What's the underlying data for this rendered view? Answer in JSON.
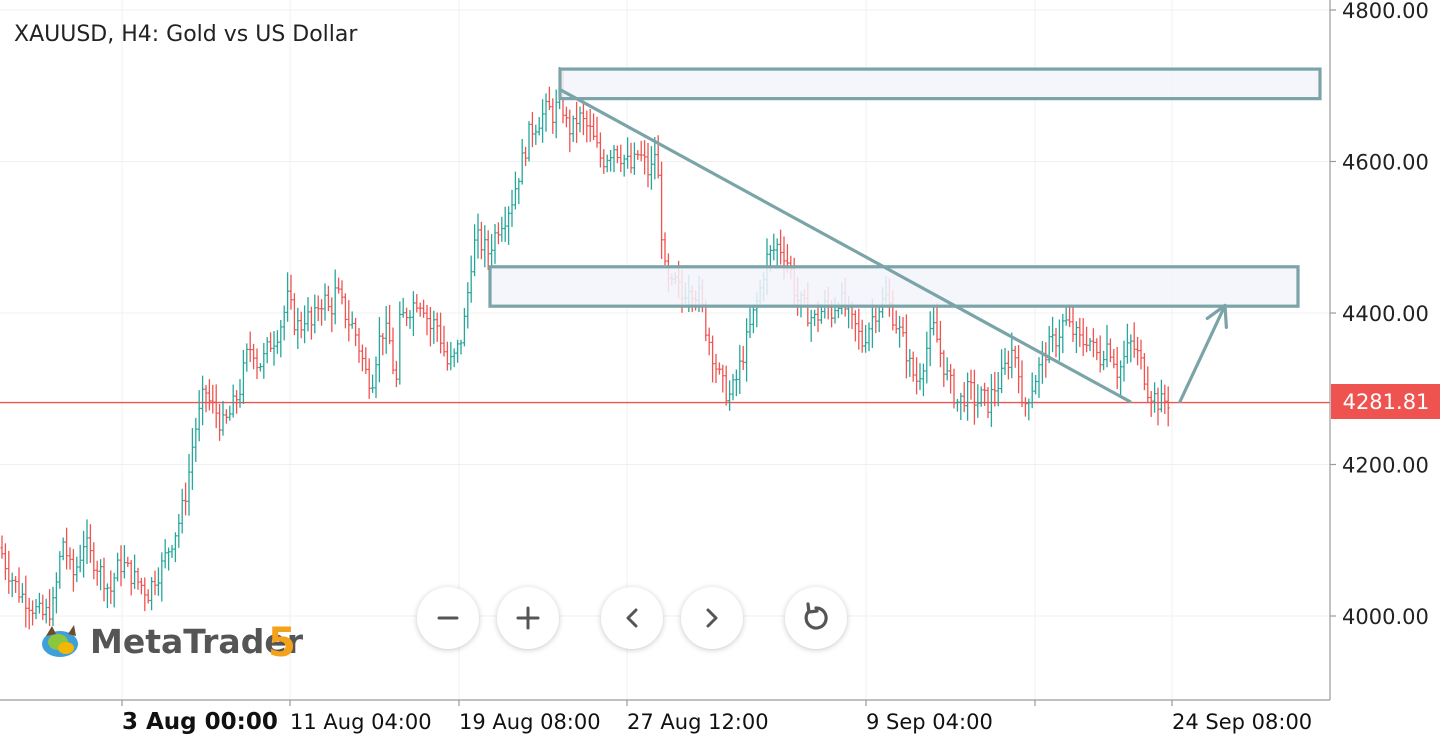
{
  "chart_data": {
    "type": "candlestick",
    "title": "XAUUSD, H4: Gold vs US Dollar",
    "symbol": "XAUUSD",
    "timeframe": "H4",
    "description": "Gold vs US Dollar",
    "y_ticks": [
      "4800.00",
      "4600.00",
      "4400.00",
      "4200.00",
      "4000.00"
    ],
    "ylim": [
      3890,
      4810
    ],
    "current_price": 4281.81,
    "current_price_label": "4281.81",
    "x_tick_labels": [
      {
        "label": "3 Aug 00:00",
        "bold": true
      },
      {
        "label": "11 Aug 04:00",
        "bold": false
      },
      {
        "label": "19 Aug 08:00",
        "bold": false
      },
      {
        "label": "27 Aug 12:00",
        "bold": false
      },
      {
        "label": "9 Sep 04:00",
        "bold": false
      },
      {
        "label": "24 Sep 08:00",
        "bold": false
      }
    ],
    "price_path": [
      [
        0,
        4090
      ],
      [
        8,
        4060
      ],
      [
        14,
        4045
      ],
      [
        20,
        4030
      ],
      [
        28,
        4020
      ],
      [
        34,
        4010
      ],
      [
        42,
        4000
      ],
      [
        48,
        4005
      ],
      [
        54,
        4015
      ],
      [
        58,
        4060
      ],
      [
        63,
        4100
      ],
      [
        67,
        4080
      ],
      [
        72,
        4050
      ],
      [
        78,
        4070
      ],
      [
        84,
        4100
      ],
      [
        90,
        4080
      ],
      [
        96,
        4070
      ],
      [
        104,
        4050
      ],
      [
        110,
        4030
      ],
      [
        116,
        4060
      ],
      [
        122,
        4070
      ],
      [
        128,
        4060
      ],
      [
        134,
        4050
      ],
      [
        142,
        4040
      ],
      [
        148,
        4030
      ],
      [
        154,
        4050
      ],
      [
        160,
        4060
      ],
      [
        166,
        4080
      ],
      [
        172,
        4100
      ],
      [
        178,
        4120
      ],
      [
        184,
        4150
      ],
      [
        188,
        4180
      ],
      [
        194,
        4240
      ],
      [
        200,
        4270
      ],
      [
        205,
        4300
      ],
      [
        210,
        4280
      ],
      [
        216,
        4270
      ],
      [
        222,
        4250
      ],
      [
        228,
        4260
      ],
      [
        234,
        4280
      ],
      [
        240,
        4300
      ],
      [
        246,
        4340
      ],
      [
        252,
        4360
      ],
      [
        258,
        4330
      ],
      [
        264,
        4340
      ],
      [
        270,
        4360
      ],
      [
        276,
        4370
      ],
      [
        282,
        4390
      ],
      [
        288,
        4420
      ],
      [
        294,
        4390
      ],
      [
        300,
        4380
      ],
      [
        306,
        4400
      ],
      [
        312,
        4380
      ],
      [
        318,
        4410
      ],
      [
        324,
        4420
      ],
      [
        330,
        4400
      ],
      [
        336,
        4430
      ],
      [
        342,
        4410
      ],
      [
        348,
        4390
      ],
      [
        354,
        4380
      ],
      [
        360,
        4350
      ],
      [
        366,
        4320
      ],
      [
        372,
        4310
      ],
      [
        378,
        4360
      ],
      [
        384,
        4380
      ],
      [
        390,
        4360
      ],
      [
        396,
        4300
      ],
      [
        400,
        4390
      ],
      [
        406,
        4400
      ],
      [
        412,
        4410
      ],
      [
        418,
        4420
      ],
      [
        424,
        4410
      ],
      [
        430,
        4380
      ],
      [
        436,
        4390
      ],
      [
        442,
        4360
      ],
      [
        448,
        4330
      ],
      [
        454,
        4340
      ],
      [
        460,
        4360
      ],
      [
        466,
        4400
      ],
      [
        470,
        4460
      ],
      [
        476,
        4500
      ],
      [
        482,
        4490
      ],
      [
        488,
        4480
      ],
      [
        494,
        4500
      ],
      [
        500,
        4520
      ],
      [
        506,
        4530
      ],
      [
        512,
        4550
      ],
      [
        518,
        4580
      ],
      [
        524,
        4610
      ],
      [
        530,
        4640
      ],
      [
        536,
        4650
      ],
      [
        542,
        4660
      ],
      [
        548,
        4670
      ],
      [
        554,
        4660
      ],
      [
        560,
        4690
      ],
      [
        566,
        4650
      ],
      [
        572,
        4640
      ],
      [
        578,
        4660
      ],
      [
        584,
        4650
      ],
      [
        590,
        4640
      ],
      [
        596,
        4620
      ],
      [
        602,
        4600
      ],
      [
        608,
        4610
      ],
      [
        614,
        4620
      ],
      [
        620,
        4610
      ],
      [
        626,
        4600
      ],
      [
        632,
        4590
      ],
      [
        638,
        4610
      ],
      [
        644,
        4600
      ],
      [
        650,
        4580
      ],
      [
        656,
        4620
      ],
      [
        660,
        4540
      ],
      [
        664,
        4460
      ],
      [
        670,
        4430
      ],
      [
        676,
        4440
      ],
      [
        682,
        4420
      ],
      [
        688,
        4440
      ],
      [
        694,
        4430
      ],
      [
        700,
        4420
      ],
      [
        706,
        4380
      ],
      [
        712,
        4350
      ],
      [
        718,
        4320
      ],
      [
        724,
        4300
      ],
      [
        730,
        4290
      ],
      [
        736,
        4310
      ],
      [
        742,
        4340
      ],
      [
        748,
        4370
      ],
      [
        754,
        4400
      ],
      [
        760,
        4430
      ],
      [
        766,
        4470
      ],
      [
        772,
        4480
      ],
      [
        778,
        4490
      ],
      [
        784,
        4480
      ],
      [
        790,
        4460
      ],
      [
        796,
        4420
      ],
      [
        802,
        4410
      ],
      [
        808,
        4400
      ],
      [
        814,
        4390
      ],
      [
        820,
        4400
      ],
      [
        826,
        4410
      ],
      [
        832,
        4400
      ],
      [
        838,
        4420
      ],
      [
        844,
        4410
      ],
      [
        850,
        4390
      ],
      [
        856,
        4380
      ],
      [
        862,
        4360
      ],
      [
        868,
        4380
      ],
      [
        874,
        4400
      ],
      [
        880,
        4410
      ],
      [
        886,
        4420
      ],
      [
        892,
        4400
      ],
      [
        898,
        4380
      ],
      [
        904,
        4360
      ],
      [
        910,
        4330
      ],
      [
        916,
        4310
      ],
      [
        922,
        4330
      ],
      [
        928,
        4360
      ],
      [
        934,
        4380
      ],
      [
        940,
        4350
      ],
      [
        946,
        4320
      ],
      [
        952,
        4300
      ],
      [
        958,
        4280
      ],
      [
        964,
        4290
      ],
      [
        970,
        4300
      ],
      [
        976,
        4280
      ],
      [
        982,
        4290
      ],
      [
        988,
        4280
      ],
      [
        994,
        4300
      ],
      [
        1000,
        4310
      ],
      [
        1006,
        4330
      ],
      [
        1012,
        4350
      ],
      [
        1018,
        4340
      ],
      [
        1022,
        4270
      ],
      [
        1028,
        4290
      ],
      [
        1034,
        4310
      ],
      [
        1040,
        4330
      ],
      [
        1046,
        4350
      ],
      [
        1052,
        4360
      ],
      [
        1058,
        4370
      ],
      [
        1064,
        4390
      ],
      [
        1070,
        4380
      ],
      [
        1076,
        4370
      ],
      [
        1082,
        4360
      ],
      [
        1088,
        4370
      ],
      [
        1094,
        4350
      ],
      [
        1100,
        4340
      ],
      [
        1106,
        4360
      ],
      [
        1112,
        4350
      ],
      [
        1118,
        4320
      ],
      [
        1124,
        4340
      ],
      [
        1130,
        4360
      ],
      [
        1136,
        4350
      ],
      [
        1142,
        4330
      ],
      [
        1148,
        4300
      ],
      [
        1154,
        4290
      ],
      [
        1160,
        4280
      ],
      [
        1166,
        4285
      ],
      [
        1170,
        4282
      ]
    ],
    "annotations": [
      {
        "type": "rectangle",
        "price_top": 4722,
        "price_bottom": 4683,
        "x_start": 560,
        "x_end": 1320
      },
      {
        "type": "rectangle",
        "price_top": 4461,
        "price_bottom": 4409,
        "x_start": 490,
        "x_end": 1298
      },
      {
        "type": "trendline",
        "from": [
          560,
          4695
        ],
        "to": [
          1130,
          4283
        ]
      },
      {
        "type": "arrow",
        "from": [
          1180,
          4283
        ],
        "to": [
          1225,
          4410
        ]
      }
    ],
    "colors": {
      "bull": "#26a69a",
      "bear": "#ef5350",
      "price_line": "#ef5350",
      "annotation": "#7aa4a8",
      "zone_fill": "#f3f3fb",
      "grid": "#f0f0f0",
      "axis": "#9a9a9a",
      "text": "#222222"
    }
  },
  "branding": {
    "name": "MetaTrader",
    "version": "5"
  },
  "controls": [
    {
      "name": "zoom-out-button",
      "icon": "minus-icon"
    },
    {
      "name": "zoom-in-button",
      "icon": "plus-icon"
    },
    {
      "name": "scroll-left-button",
      "icon": "chevron-left-icon"
    },
    {
      "name": "scroll-right-button",
      "icon": "chevron-right-icon"
    },
    {
      "name": "reset-button",
      "icon": "reset-icon"
    }
  ]
}
